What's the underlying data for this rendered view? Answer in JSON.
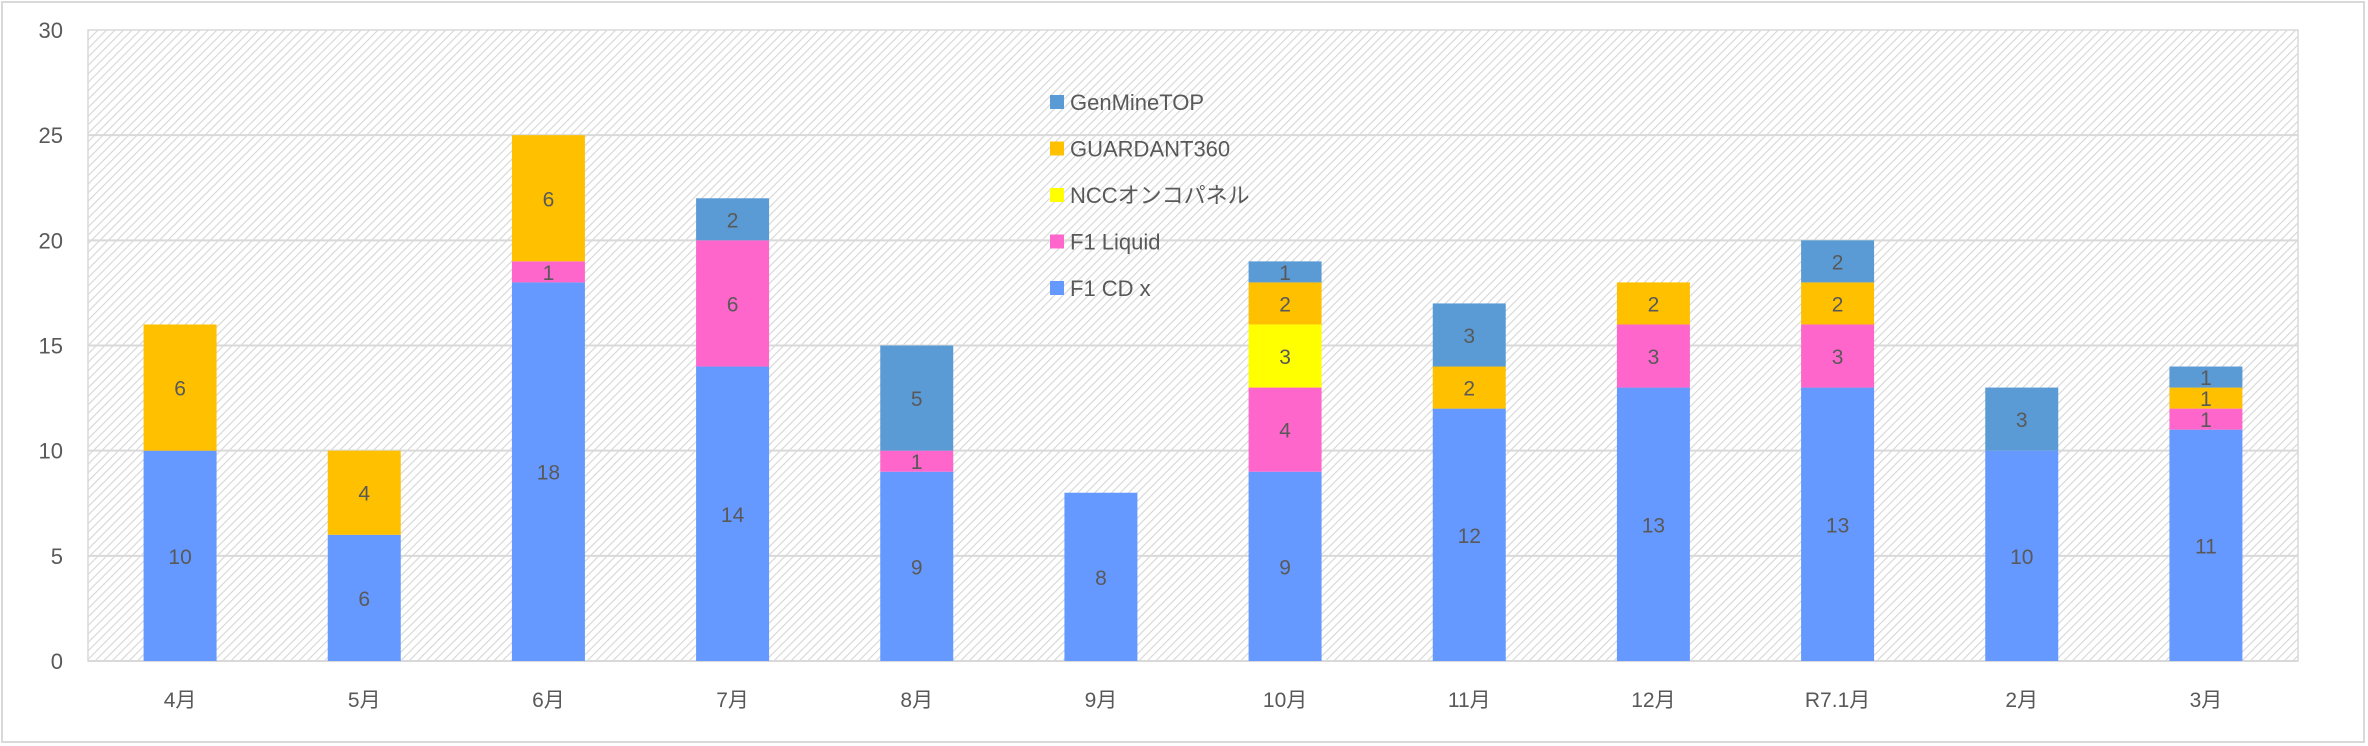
{
  "chart_data": {
    "type": "bar",
    "stacked": true,
    "title": "",
    "xlabel": "",
    "ylabel": "",
    "ylim": [
      0,
      30
    ],
    "yticks": [
      0,
      5,
      10,
      15,
      20,
      25,
      30
    ],
    "grid": true,
    "legend_placement": "top-center",
    "categories": [
      "4月",
      "5月",
      "6月",
      "7月",
      "8月",
      "9月",
      "10月",
      "11月",
      "12月",
      "R7.1月",
      "2月",
      "3月"
    ],
    "series": [
      {
        "name": "F1 CD x",
        "color": "#6699FF",
        "values": [
          10,
          6,
          18,
          14,
          9,
          8,
          9,
          12,
          13,
          13,
          10,
          11
        ]
      },
      {
        "name": "F1 Liquid",
        "color": "#FF66CC",
        "values": [
          0,
          0,
          1,
          6,
          1,
          0,
          4,
          0,
          3,
          3,
          0,
          1
        ]
      },
      {
        "name": "NCCオンコパネル",
        "color": "#FFFF00",
        "values": [
          0,
          0,
          0,
          0,
          0,
          0,
          3,
          0,
          0,
          0,
          0,
          0
        ]
      },
      {
        "name": "GUARDANT360",
        "color": "#FFC000",
        "values": [
          6,
          4,
          6,
          0,
          0,
          0,
          2,
          2,
          2,
          2,
          0,
          1
        ]
      },
      {
        "name": "GenMineTOP",
        "color": "#5B9BD5",
        "values": [
          0,
          0,
          0,
          2,
          5,
          0,
          1,
          3,
          0,
          2,
          3,
          1
        ]
      }
    ]
  }
}
